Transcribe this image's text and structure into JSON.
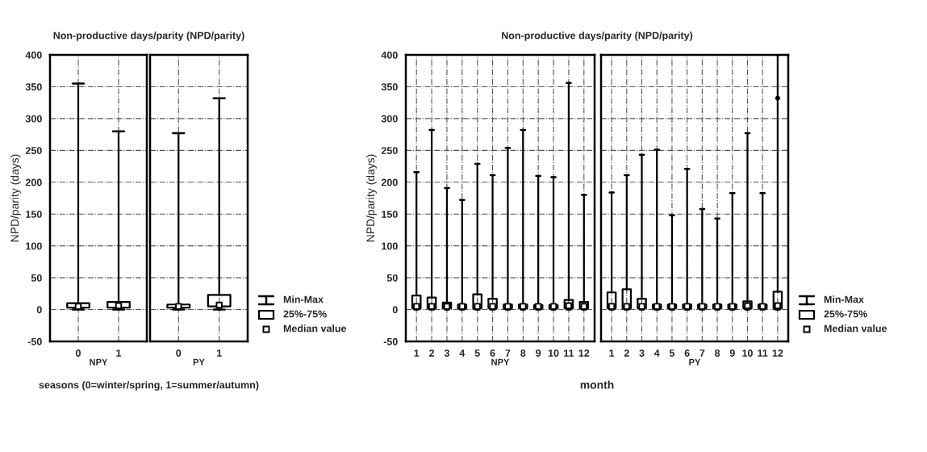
{
  "chart_data": [
    {
      "type": "box",
      "title": "Non-productive days/parity (NPD/parity)",
      "ylabel": "NPD/parity (days)",
      "xlabel": "NPY",
      "categories": [
        "0",
        "1"
      ],
      "ylim": [
        -50,
        400
      ],
      "yticks": [
        -50,
        0,
        50,
        100,
        150,
        200,
        250,
        300,
        350,
        400
      ],
      "grid": true,
      "annotations": [
        "seasons (0=winter/spring, 1=summer/autumn)"
      ],
      "boxes": [
        {
          "low": 0,
          "q1": 3,
          "median": 5,
          "q3": 10,
          "high": 355
        },
        {
          "low": 0,
          "q1": 3,
          "median": 6,
          "q3": 12,
          "high": 280
        }
      ]
    },
    {
      "type": "box",
      "xlabel": "PY",
      "categories": [
        "0",
        "1"
      ],
      "ylim": [
        -50,
        400
      ],
      "yticks": [
        -50,
        0,
        50,
        100,
        150,
        200,
        250,
        300,
        350,
        400
      ],
      "grid": true,
      "tick_labels": "x",
      "annotations": [
        "Min-Max",
        "25%-75%",
        "Median value"
      ],
      "boxes": [
        {
          "low": 0,
          "q1": 3,
          "median": 5,
          "q3": 8,
          "high": 277
        },
        {
          "low": 0,
          "q1": 5,
          "median": 7,
          "q3": 23,
          "high": 332
        }
      ]
    },
    {
      "type": "box",
      "title": "Non-productive days/parity (NPD/parity)",
      "ylabel": "NPD/parity (days)",
      "xlabel": "NPY",
      "categories": [
        "1",
        "2",
        "3",
        "4",
        "5",
        "6",
        "7",
        "8",
        "9",
        "10",
        "11",
        "12"
      ],
      "ylim": [
        -50,
        400
      ],
      "yticks": [
        -50,
        0,
        50,
        100,
        150,
        200,
        250,
        300,
        350,
        400
      ],
      "grid": true,
      "annotations": [
        "month"
      ],
      "boxes": [
        {
          "low": 0,
          "q1": 2,
          "median": 5,
          "q3": 22,
          "high": 216
        },
        {
          "low": 0,
          "q1": 2,
          "median": 5,
          "q3": 19,
          "high": 282
        },
        {
          "low": 0,
          "q1": 2,
          "median": 5,
          "q3": 11,
          "high": 191
        },
        {
          "low": 0,
          "q1": 2,
          "median": 5,
          "q3": 8,
          "high": 172
        },
        {
          "low": 0,
          "q1": 2,
          "median": 5,
          "q3": 24,
          "high": 229
        },
        {
          "low": 0,
          "q1": 2,
          "median": 5,
          "q3": 17,
          "high": 211
        },
        {
          "low": 0,
          "q1": 2,
          "median": 5,
          "q3": 8,
          "high": 254
        },
        {
          "low": 0,
          "q1": 2,
          "median": 5,
          "q3": 8,
          "high": 282
        },
        {
          "low": 0,
          "q1": 2,
          "median": 5,
          "q3": 7,
          "high": 210
        },
        {
          "low": 0,
          "q1": 2,
          "median": 5,
          "q3": 7,
          "high": 208
        },
        {
          "low": 0,
          "q1": 2,
          "median": 6,
          "q3": 15,
          "high": 356
        },
        {
          "low": 0,
          "q1": 2,
          "median": 5,
          "q3": 12,
          "high": 180
        }
      ]
    },
    {
      "type": "box",
      "xlabel": "PY",
      "categories": [
        "1",
        "2",
        "3",
        "4",
        "5",
        "6",
        "7",
        "8",
        "9",
        "10",
        "11",
        "12"
      ],
      "ylim": [
        -50,
        400
      ],
      "yticks": [
        -50,
        0,
        50,
        100,
        150,
        200,
        250,
        300,
        350,
        400
      ],
      "grid": true,
      "tick_labels": "x",
      "annotations": [
        "Min-Max",
        "25%-75%",
        "Median value"
      ],
      "boxes": [
        {
          "low": 0,
          "q1": 2,
          "median": 5,
          "q3": 27,
          "high": 184
        },
        {
          "low": 0,
          "q1": 2,
          "median": 5,
          "q3": 32,
          "high": 211
        },
        {
          "low": 0,
          "q1": 2,
          "median": 5,
          "q3": 17,
          "high": 243
        },
        {
          "low": 0,
          "q1": 2,
          "median": 5,
          "q3": 8,
          "high": 251
        },
        {
          "low": 0,
          "q1": 2,
          "median": 5,
          "q3": 8,
          "high": 148
        },
        {
          "low": 0,
          "q1": 2,
          "median": 5,
          "q3": 8,
          "high": 221
        },
        {
          "low": 0,
          "q1": 2,
          "median": 5,
          "q3": 8,
          "high": 158
        },
        {
          "low": 0,
          "q1": 2,
          "median": 5,
          "q3": 8,
          "high": 143
        },
        {
          "low": 0,
          "q1": 2,
          "median": 5,
          "q3": 8,
          "high": 183
        },
        {
          "low": 0,
          "q1": 2,
          "median": 6,
          "q3": 13,
          "high": 277
        },
        {
          "low": 0,
          "q1": 2,
          "median": 5,
          "q3": 8,
          "high": 183
        },
        {
          "low": 0,
          "q1": 2,
          "median": 6,
          "q3": 28,
          "high": 400,
          "outliers": [
            332
          ]
        }
      ]
    }
  ]
}
